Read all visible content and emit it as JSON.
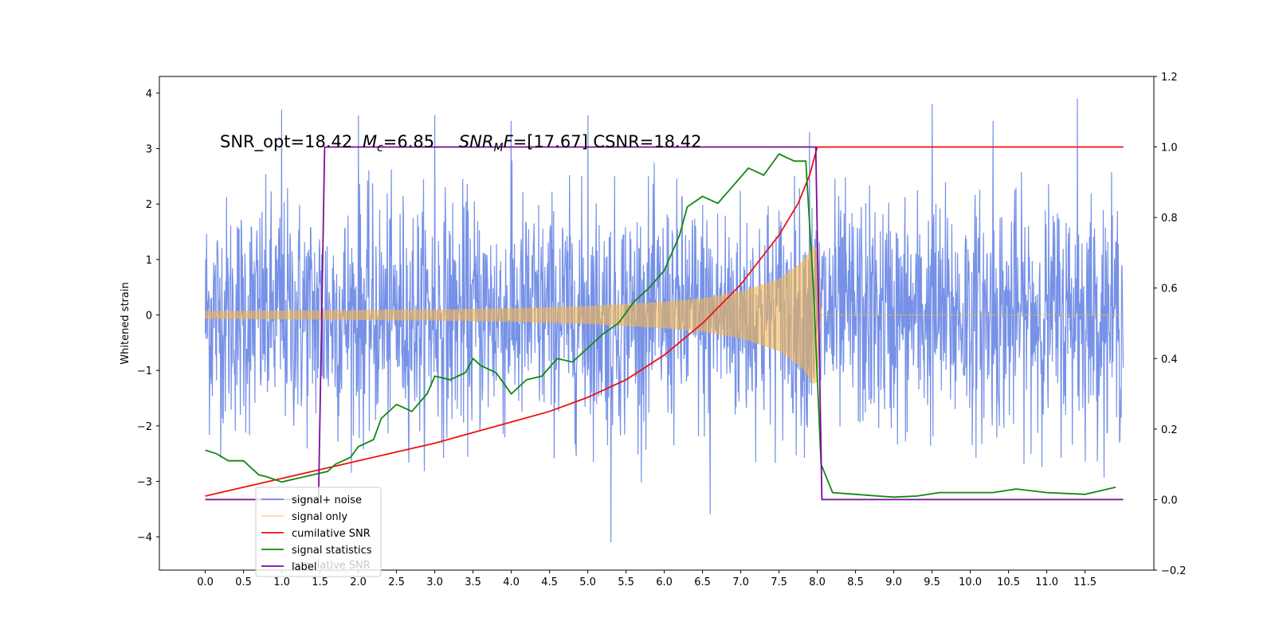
{
  "chart_data": {
    "type": "line",
    "title": "",
    "xlabel": "",
    "ylabel": "Whitened strain",
    "xlim": [
      -0.6,
      12.4
    ],
    "ylim": [
      -4.6,
      4.3
    ],
    "y2lim": [
      -0.2,
      1.2
    ],
    "xticks": [
      "0.0",
      "0.5",
      "1.0",
      "1.5",
      "2.0",
      "2.5",
      "3.0",
      "3.5",
      "4.0",
      "4.5",
      "5.0",
      "5.5",
      "6.0",
      "6.5",
      "7.0",
      "7.5",
      "8.0",
      "8.5",
      "9.0",
      "9.5",
      "10.0",
      "10.5",
      "11.0",
      "11.5"
    ],
    "yticks": [
      "4",
      "3",
      "2",
      "1",
      "0",
      "−1",
      "−2",
      "−3",
      "−4"
    ],
    "y2ticks": [
      "1.2",
      "1.0",
      "0.8",
      "0.6",
      "0.4",
      "0.2",
      "0.0",
      "−0.2"
    ],
    "annotation": {
      "snr_opt": "SNR_opt=18.42",
      "mc_symbol": "M",
      "mc_sub": "c",
      "mc_value": "=6.85",
      "snrmf_symbol": "SNR",
      "snrmf_sub": "M",
      "snrmf_f": "F",
      "snrmf_value": "=[17.67] CSNR=18.42"
    },
    "legend": {
      "placement": "bottom-left",
      "entries": [
        "signal+ noise",
        "signal only",
        "cumilative SNR",
        "signal statistics",
        "label"
      ],
      "ghost_text": "cumilative SNR"
    },
    "colors": {
      "noise": "#6f8be6",
      "signal": "#f5b64f",
      "cumulative": "#ee1111",
      "statistics": "#118811",
      "label": "#7a0d98"
    },
    "series": [
      {
        "name": "signal+ noise",
        "axis": "left",
        "kind": "noise",
        "x_range": [
          0.0,
          12.0
        ],
        "envelope": [
          -2.5,
          2.5
        ],
        "extremes_x": [
          1.0,
          2.0,
          3.0,
          4.0,
          5.0,
          5.3,
          6.6,
          7.9,
          9.5,
          10.3,
          11.4
        ],
        "extremes_y": [
          3.7,
          3.6,
          3.6,
          3.5,
          3.6,
          -4.1,
          -3.6,
          3.3,
          3.8,
          3.5,
          3.9
        ]
      },
      {
        "name": "signal only",
        "axis": "left",
        "kind": "chirp",
        "x_range": [
          0.0,
          8.05
        ],
        "amplitude_x": [
          0.0,
          1.0,
          2.0,
          3.0,
          4.0,
          5.0,
          6.0,
          6.5,
          7.0,
          7.5,
          7.8,
          7.95,
          8.0,
          8.05
        ],
        "amplitude_y": [
          0.07,
          0.08,
          0.09,
          0.1,
          0.12,
          0.16,
          0.24,
          0.3,
          0.42,
          0.65,
          0.95,
          1.25,
          1.2,
          0.0
        ]
      },
      {
        "name": "cumilative SNR",
        "axis": "right",
        "x": [
          0.0,
          0.5,
          1.0,
          1.5,
          2.0,
          2.5,
          3.0,
          3.5,
          4.0,
          4.5,
          5.0,
          5.5,
          6.0,
          6.5,
          7.0,
          7.5,
          7.75,
          7.9,
          8.0,
          12.0
        ],
        "y": [
          0.01,
          0.035,
          0.06,
          0.085,
          0.11,
          0.135,
          0.16,
          0.19,
          0.22,
          0.25,
          0.29,
          0.34,
          0.41,
          0.5,
          0.61,
          0.75,
          0.84,
          0.92,
          1.0,
          1.0
        ]
      },
      {
        "name": "signal statistics",
        "axis": "right",
        "x": [
          0.0,
          0.15,
          0.3,
          0.5,
          0.7,
          0.8,
          1.0,
          1.2,
          1.4,
          1.6,
          1.7,
          1.9,
          2.0,
          2.2,
          2.3,
          2.5,
          2.7,
          2.9,
          3.0,
          3.2,
          3.4,
          3.5,
          3.6,
          3.8,
          4.0,
          4.2,
          4.4,
          4.6,
          4.8,
          5.0,
          5.2,
          5.4,
          5.6,
          5.8,
          6.0,
          6.2,
          6.3,
          6.5,
          6.7,
          6.9,
          7.1,
          7.3,
          7.5,
          7.7,
          7.85,
          7.95,
          8.05,
          8.2,
          8.5,
          8.8,
          9.0,
          9.3,
          9.6,
          10.0,
          10.3,
          10.6,
          11.0,
          11.5,
          11.9
        ],
        "y": [
          0.14,
          0.13,
          0.11,
          0.11,
          0.07,
          0.065,
          0.05,
          0.06,
          0.07,
          0.08,
          0.1,
          0.12,
          0.15,
          0.17,
          0.23,
          0.27,
          0.25,
          0.3,
          0.35,
          0.34,
          0.36,
          0.4,
          0.38,
          0.36,
          0.3,
          0.34,
          0.35,
          0.4,
          0.39,
          0.43,
          0.47,
          0.5,
          0.56,
          0.6,
          0.65,
          0.75,
          0.83,
          0.86,
          0.84,
          0.89,
          0.94,
          0.92,
          0.98,
          0.96,
          0.96,
          0.6,
          0.1,
          0.02,
          0.015,
          0.01,
          0.007,
          0.01,
          0.02,
          0.02,
          0.02,
          0.03,
          0.02,
          0.015,
          0.035
        ]
      },
      {
        "name": "label",
        "axis": "right",
        "x": [
          0.0,
          1.48,
          1.56,
          7.98,
          8.06,
          12.0
        ],
        "y": [
          0.0,
          0.0,
          1.0,
          1.0,
          0.0,
          0.0
        ]
      }
    ]
  }
}
